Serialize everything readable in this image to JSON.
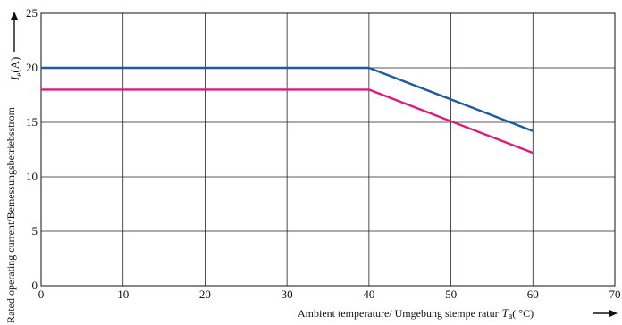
{
  "chart_data": {
    "type": "line",
    "xlabel": "Ambient temperature/  Umgebung stempe ratur",
    "xlabel_symbol": "T",
    "xlabel_symbol_sub": "a",
    "xlabel_unit": "( °C)",
    "ylabel": "Rated operating current/Bemessungsbetriebsstrom",
    "ylabel_symbol": "I",
    "ylabel_symbol_sub": "e",
    "ylabel_unit": "(A)",
    "xlim": [
      0,
      70
    ],
    "ylim": [
      0,
      25
    ],
    "xticks": [
      "0",
      "10",
      "20",
      "30",
      "40",
      "50",
      "60",
      "70"
    ],
    "yticks": [
      "0",
      "5",
      "10",
      "15",
      "20",
      "25"
    ],
    "grid": true,
    "series": [
      {
        "color": "#1f5aa0",
        "x": [
          0,
          40,
          60
        ],
        "y": [
          20,
          20,
          14.2
        ]
      },
      {
        "color": "#e0197d",
        "x": [
          0,
          40,
          60
        ],
        "y": [
          18,
          18,
          12.2
        ]
      }
    ]
  }
}
